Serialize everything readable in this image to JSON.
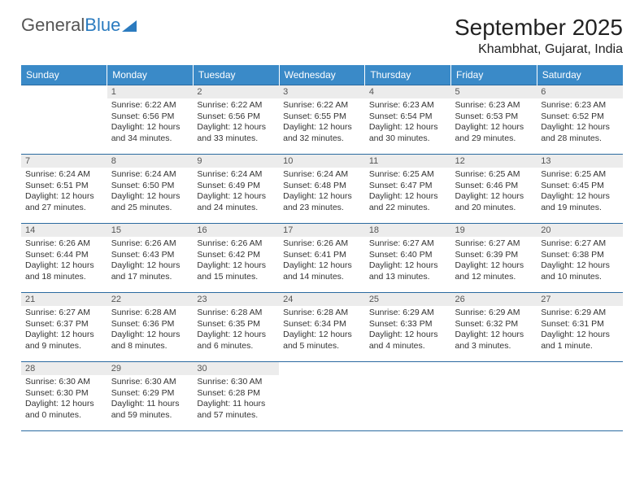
{
  "logo": {
    "text1": "General",
    "text2": "Blue"
  },
  "title": "September 2025",
  "location": "Khambhat, Gujarat, India",
  "colors": {
    "header_bg": "#3a8ac8",
    "header_text": "#ffffff",
    "daynum_bg": "#ececec",
    "daynum_text": "#555555",
    "border": "#2b6aa0",
    "body_text": "#333333",
    "logo_gray": "#555555",
    "logo_blue": "#2b7bbf"
  },
  "weekdays": [
    "Sunday",
    "Monday",
    "Tuesday",
    "Wednesday",
    "Thursday",
    "Friday",
    "Saturday"
  ],
  "weeks": [
    [
      null,
      {
        "n": "1",
        "sr": "6:22 AM",
        "ss": "6:56 PM",
        "dl": "12 hours and 34 minutes."
      },
      {
        "n": "2",
        "sr": "6:22 AM",
        "ss": "6:56 PM",
        "dl": "12 hours and 33 minutes."
      },
      {
        "n": "3",
        "sr": "6:22 AM",
        "ss": "6:55 PM",
        "dl": "12 hours and 32 minutes."
      },
      {
        "n": "4",
        "sr": "6:23 AM",
        "ss": "6:54 PM",
        "dl": "12 hours and 30 minutes."
      },
      {
        "n": "5",
        "sr": "6:23 AM",
        "ss": "6:53 PM",
        "dl": "12 hours and 29 minutes."
      },
      {
        "n": "6",
        "sr": "6:23 AM",
        "ss": "6:52 PM",
        "dl": "12 hours and 28 minutes."
      }
    ],
    [
      {
        "n": "7",
        "sr": "6:24 AM",
        "ss": "6:51 PM",
        "dl": "12 hours and 27 minutes."
      },
      {
        "n": "8",
        "sr": "6:24 AM",
        "ss": "6:50 PM",
        "dl": "12 hours and 25 minutes."
      },
      {
        "n": "9",
        "sr": "6:24 AM",
        "ss": "6:49 PM",
        "dl": "12 hours and 24 minutes."
      },
      {
        "n": "10",
        "sr": "6:24 AM",
        "ss": "6:48 PM",
        "dl": "12 hours and 23 minutes."
      },
      {
        "n": "11",
        "sr": "6:25 AM",
        "ss": "6:47 PM",
        "dl": "12 hours and 22 minutes."
      },
      {
        "n": "12",
        "sr": "6:25 AM",
        "ss": "6:46 PM",
        "dl": "12 hours and 20 minutes."
      },
      {
        "n": "13",
        "sr": "6:25 AM",
        "ss": "6:45 PM",
        "dl": "12 hours and 19 minutes."
      }
    ],
    [
      {
        "n": "14",
        "sr": "6:26 AM",
        "ss": "6:44 PM",
        "dl": "12 hours and 18 minutes."
      },
      {
        "n": "15",
        "sr": "6:26 AM",
        "ss": "6:43 PM",
        "dl": "12 hours and 17 minutes."
      },
      {
        "n": "16",
        "sr": "6:26 AM",
        "ss": "6:42 PM",
        "dl": "12 hours and 15 minutes."
      },
      {
        "n": "17",
        "sr": "6:26 AM",
        "ss": "6:41 PM",
        "dl": "12 hours and 14 minutes."
      },
      {
        "n": "18",
        "sr": "6:27 AM",
        "ss": "6:40 PM",
        "dl": "12 hours and 13 minutes."
      },
      {
        "n": "19",
        "sr": "6:27 AM",
        "ss": "6:39 PM",
        "dl": "12 hours and 12 minutes."
      },
      {
        "n": "20",
        "sr": "6:27 AM",
        "ss": "6:38 PM",
        "dl": "12 hours and 10 minutes."
      }
    ],
    [
      {
        "n": "21",
        "sr": "6:27 AM",
        "ss": "6:37 PM",
        "dl": "12 hours and 9 minutes."
      },
      {
        "n": "22",
        "sr": "6:28 AM",
        "ss": "6:36 PM",
        "dl": "12 hours and 8 minutes."
      },
      {
        "n": "23",
        "sr": "6:28 AM",
        "ss": "6:35 PM",
        "dl": "12 hours and 6 minutes."
      },
      {
        "n": "24",
        "sr": "6:28 AM",
        "ss": "6:34 PM",
        "dl": "12 hours and 5 minutes."
      },
      {
        "n": "25",
        "sr": "6:29 AM",
        "ss": "6:33 PM",
        "dl": "12 hours and 4 minutes."
      },
      {
        "n": "26",
        "sr": "6:29 AM",
        "ss": "6:32 PM",
        "dl": "12 hours and 3 minutes."
      },
      {
        "n": "27",
        "sr": "6:29 AM",
        "ss": "6:31 PM",
        "dl": "12 hours and 1 minute."
      }
    ],
    [
      {
        "n": "28",
        "sr": "6:30 AM",
        "ss": "6:30 PM",
        "dl": "12 hours and 0 minutes."
      },
      {
        "n": "29",
        "sr": "6:30 AM",
        "ss": "6:29 PM",
        "dl": "11 hours and 59 minutes."
      },
      {
        "n": "30",
        "sr": "6:30 AM",
        "ss": "6:28 PM",
        "dl": "11 hours and 57 minutes."
      },
      null,
      null,
      null,
      null
    ]
  ],
  "labels": {
    "sunrise": "Sunrise:",
    "sunset": "Sunset:",
    "daylight": "Daylight:"
  }
}
